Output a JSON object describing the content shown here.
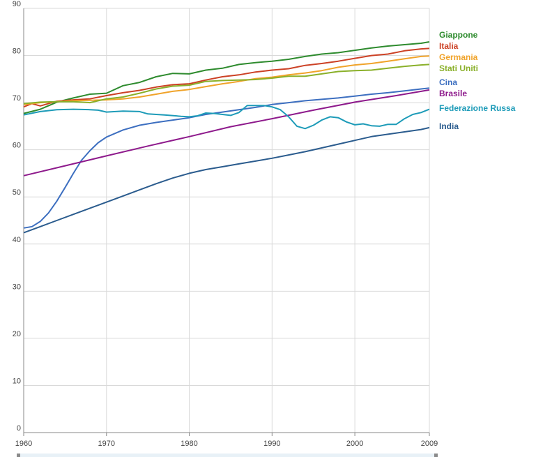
{
  "chart_data": {
    "type": "line",
    "title": "",
    "xlabel": "",
    "ylabel": "",
    "xlim": [
      1960,
      2009
    ],
    "ylim": [
      0,
      90
    ],
    "x_ticks": [
      "1960",
      "1970",
      "1980",
      "1990",
      "2000",
      "2009"
    ],
    "x_tick_values": [
      1960,
      1970,
      1980,
      1990,
      2000,
      2009
    ],
    "y_ticks": [
      "0",
      "10",
      "20",
      "30",
      "40",
      "50",
      "60",
      "70",
      "80",
      "90"
    ],
    "grid": true,
    "legend_position": "right",
    "series": [
      {
        "name": "Giappone",
        "color": "#2e8b2e",
        "points": [
          [
            1960,
            67.7
          ],
          [
            1962,
            68.6
          ],
          [
            1964,
            70.1
          ],
          [
            1966,
            71
          ],
          [
            1968,
            71.8
          ],
          [
            1970,
            72.0
          ],
          [
            1972,
            73.6
          ],
          [
            1974,
            74.3
          ],
          [
            1976,
            75.5
          ],
          [
            1978,
            76.2
          ],
          [
            1980,
            76.1
          ],
          [
            1982,
            76.9
          ],
          [
            1984,
            77.3
          ],
          [
            1986,
            78.1
          ],
          [
            1988,
            78.5
          ],
          [
            1990,
            78.8
          ],
          [
            1992,
            79.2
          ],
          [
            1994,
            79.8
          ],
          [
            1996,
            80.3
          ],
          [
            1998,
            80.6
          ],
          [
            2000,
            81.1
          ],
          [
            2002,
            81.6
          ],
          [
            2004,
            82.0
          ],
          [
            2006,
            82.3
          ],
          [
            2008,
            82.6
          ],
          [
            2009,
            82.9
          ]
        ]
      },
      {
        "name": "Italia",
        "color": "#cc4125",
        "points": [
          [
            1960,
            69.1
          ],
          [
            1961,
            69.8
          ],
          [
            1962,
            69.3
          ],
          [
            1964,
            70.3
          ],
          [
            1966,
            70.6
          ],
          [
            1968,
            70.8
          ],
          [
            1970,
            71.5
          ],
          [
            1972,
            72.1
          ],
          [
            1974,
            72.6
          ],
          [
            1976,
            73.3
          ],
          [
            1978,
            73.8
          ],
          [
            1980,
            74.0
          ],
          [
            1982,
            74.8
          ],
          [
            1984,
            75.5
          ],
          [
            1986,
            75.9
          ],
          [
            1988,
            76.5
          ],
          [
            1990,
            76.9
          ],
          [
            1992,
            77.2
          ],
          [
            1994,
            77.9
          ],
          [
            1996,
            78.3
          ],
          [
            1998,
            78.8
          ],
          [
            2000,
            79.4
          ],
          [
            2002,
            80.0
          ],
          [
            2004,
            80.3
          ],
          [
            2006,
            81.0
          ],
          [
            2008,
            81.4
          ],
          [
            2009,
            81.5
          ]
        ]
      },
      {
        "name": "Germania",
        "color": "#f0a32a",
        "points": [
          [
            1960,
            69.6
          ],
          [
            1962,
            70.0
          ],
          [
            1964,
            70.2
          ],
          [
            1966,
            70.4
          ],
          [
            1968,
            70.5
          ],
          [
            1970,
            70.6
          ],
          [
            1972,
            70.8
          ],
          [
            1974,
            71.2
          ],
          [
            1976,
            71.8
          ],
          [
            1978,
            72.4
          ],
          [
            1980,
            72.8
          ],
          [
            1982,
            73.4
          ],
          [
            1984,
            74.0
          ],
          [
            1986,
            74.5
          ],
          [
            1988,
            75.1
          ],
          [
            1990,
            75.4
          ],
          [
            1992,
            75.9
          ],
          [
            1994,
            76.3
          ],
          [
            1996,
            76.8
          ],
          [
            1998,
            77.5
          ],
          [
            2000,
            78.0
          ],
          [
            2002,
            78.3
          ],
          [
            2004,
            78.8
          ],
          [
            2006,
            79.3
          ],
          [
            2008,
            79.8
          ],
          [
            2009,
            79.9
          ]
        ]
      },
      {
        "name": "Stati Uniti",
        "color": "#8ab02a",
        "points": [
          [
            1960,
            69.8
          ],
          [
            1962,
            70.1
          ],
          [
            1964,
            70.2
          ],
          [
            1966,
            70.2
          ],
          [
            1968,
            70.0
          ],
          [
            1970,
            70.8
          ],
          [
            1972,
            71.2
          ],
          [
            1974,
            72.0
          ],
          [
            1976,
            72.9
          ],
          [
            1978,
            73.5
          ],
          [
            1980,
            73.7
          ],
          [
            1982,
            74.5
          ],
          [
            1984,
            74.7
          ],
          [
            1986,
            74.8
          ],
          [
            1988,
            74.9
          ],
          [
            1990,
            75.2
          ],
          [
            1992,
            75.6
          ],
          [
            1994,
            75.6
          ],
          [
            1996,
            76.1
          ],
          [
            1998,
            76.6
          ],
          [
            2000,
            76.8
          ],
          [
            2002,
            76.9
          ],
          [
            2004,
            77.3
          ],
          [
            2006,
            77.7
          ],
          [
            2008,
            78.0
          ],
          [
            2009,
            78.1
          ]
        ]
      },
      {
        "name": "Cina",
        "color": "#3d6fc0",
        "points": [
          [
            1960,
            43.4
          ],
          [
            1961,
            43.7
          ],
          [
            1962,
            44.8
          ],
          [
            1963,
            46.6
          ],
          [
            1964,
            49.1
          ],
          [
            1965,
            52.0
          ],
          [
            1966,
            55.0
          ],
          [
            1967,
            57.8
          ],
          [
            1968,
            59.8
          ],
          [
            1969,
            61.5
          ],
          [
            1970,
            62.7
          ],
          [
            1972,
            64.2
          ],
          [
            1974,
            65.2
          ],
          [
            1976,
            65.8
          ],
          [
            1978,
            66.3
          ],
          [
            1980,
            66.8
          ],
          [
            1982,
            67.5
          ],
          [
            1984,
            68.0
          ],
          [
            1986,
            68.5
          ],
          [
            1988,
            69.0
          ],
          [
            1990,
            69.6
          ],
          [
            1992,
            70.0
          ],
          [
            1994,
            70.4
          ],
          [
            1996,
            70.7
          ],
          [
            1998,
            71.0
          ],
          [
            2000,
            71.4
          ],
          [
            2002,
            71.8
          ],
          [
            2004,
            72.1
          ],
          [
            2006,
            72.5
          ],
          [
            2008,
            72.9
          ],
          [
            2009,
            73.1
          ]
        ]
      },
      {
        "name": "Brasile",
        "color": "#8e1a8c",
        "points": [
          [
            1960,
            54.5
          ],
          [
            1965,
            56.6
          ],
          [
            1970,
            58.7
          ],
          [
            1975,
            60.8
          ],
          [
            1980,
            62.8
          ],
          [
            1985,
            64.9
          ],
          [
            1990,
            66.6
          ],
          [
            1995,
            68.4
          ],
          [
            2000,
            70.1
          ],
          [
            2005,
            71.5
          ],
          [
            2009,
            72.7
          ]
        ]
      },
      {
        "name": "Federazione Russa",
        "color": "#1d9bb8",
        "points": [
          [
            1960,
            67.4
          ],
          [
            1962,
            68.1
          ],
          [
            1964,
            68.5
          ],
          [
            1966,
            68.6
          ],
          [
            1968,
            68.5
          ],
          [
            1969,
            68.4
          ],
          [
            1970,
            68.0
          ],
          [
            1972,
            68.2
          ],
          [
            1974,
            68.1
          ],
          [
            1975,
            67.6
          ],
          [
            1977,
            67.4
          ],
          [
            1979,
            67.1
          ],
          [
            1980,
            67.0
          ],
          [
            1981,
            67.2
          ],
          [
            1982,
            67.8
          ],
          [
            1983,
            67.7
          ],
          [
            1985,
            67.3
          ],
          [
            1986,
            67.9
          ],
          [
            1987,
            69.4
          ],
          [
            1989,
            69.4
          ],
          [
            1990,
            69.1
          ],
          [
            1991,
            68.5
          ],
          [
            1992,
            67.0
          ],
          [
            1993,
            65.0
          ],
          [
            1994,
            64.5
          ],
          [
            1995,
            65.2
          ],
          [
            1996,
            66.3
          ],
          [
            1997,
            67.0
          ],
          [
            1998,
            66.8
          ],
          [
            1999,
            65.9
          ],
          [
            2000,
            65.3
          ],
          [
            2001,
            65.5
          ],
          [
            2002,
            65.1
          ],
          [
            2003,
            65.0
          ],
          [
            2004,
            65.4
          ],
          [
            2005,
            65.4
          ],
          [
            2006,
            66.6
          ],
          [
            2007,
            67.5
          ],
          [
            2008,
            67.9
          ],
          [
            2009,
            68.6
          ]
        ]
      },
      {
        "name": "India",
        "color": "#2b5c8e",
        "points": [
          [
            1960,
            42.4
          ],
          [
            1962,
            43.7
          ],
          [
            1964,
            45.0
          ],
          [
            1966,
            46.3
          ],
          [
            1968,
            47.6
          ],
          [
            1970,
            48.9
          ],
          [
            1972,
            50.2
          ],
          [
            1974,
            51.5
          ],
          [
            1976,
            52.8
          ],
          [
            1978,
            54.0
          ],
          [
            1980,
            55.0
          ],
          [
            1982,
            55.8
          ],
          [
            1984,
            56.4
          ],
          [
            1986,
            57.0
          ],
          [
            1988,
            57.6
          ],
          [
            1990,
            58.2
          ],
          [
            1992,
            58.9
          ],
          [
            1994,
            59.6
          ],
          [
            1996,
            60.4
          ],
          [
            1998,
            61.2
          ],
          [
            2000,
            62.0
          ],
          [
            2002,
            62.8
          ],
          [
            2004,
            63.3
          ],
          [
            2006,
            63.8
          ],
          [
            2008,
            64.3
          ],
          [
            2009,
            64.7
          ]
        ]
      }
    ]
  }
}
